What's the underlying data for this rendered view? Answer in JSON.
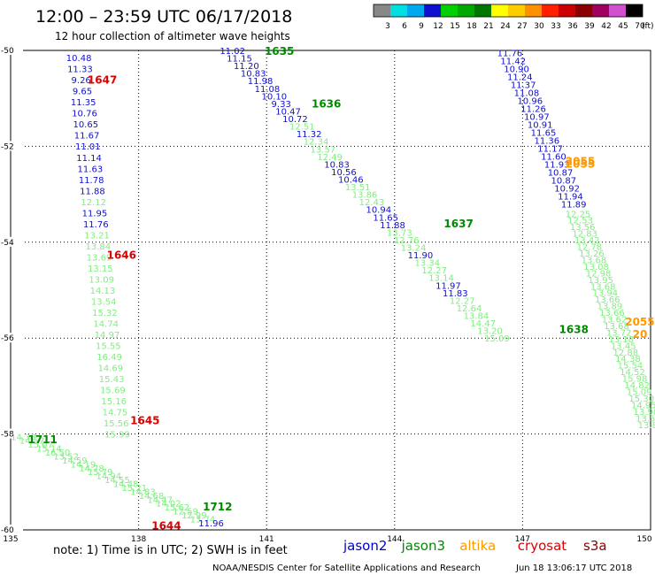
{
  "title": "12:00 – 23:59 UTC 06/17/2018",
  "subtitle": "12 hour collection of altimeter wave heights",
  "legend": {
    "unit": "(ft)",
    "bins": [
      {
        "label": "3",
        "color": "#888888"
      },
      {
        "label": "6",
        "color": "#00e0e0"
      },
      {
        "label": "9",
        "color": "#00a8f0"
      },
      {
        "label": "12",
        "color": "#1010d0"
      },
      {
        "label": "15",
        "color": "#00d000"
      },
      {
        "label": "18",
        "color": "#00a800"
      },
      {
        "label": "21",
        "color": "#007800"
      },
      {
        "label": "24",
        "color": "#ffff00"
      },
      {
        "label": "27",
        "color": "#ffcc00"
      },
      {
        "label": "30",
        "color": "#ff9000"
      },
      {
        "label": "33",
        "color": "#ff2000"
      },
      {
        "label": "36",
        "color": "#cc0000"
      },
      {
        "label": "39",
        "color": "#8a0000"
      },
      {
        "label": "42",
        "color": "#a00060"
      },
      {
        "label": "45",
        "color": "#d050d0"
      },
      {
        "label": "70",
        "color": "#000000"
      }
    ]
  },
  "footer": {
    "note": "note: 1) Time is in UTC; 2) SWH is in feet",
    "satellites": [
      {
        "name": "jason2",
        "color": "#0000cc"
      },
      {
        "name": "jason3",
        "color": "#008800"
      },
      {
        "name": "altika",
        "color": "#ff9900"
      },
      {
        "name": "cryosat",
        "color": "#dd0000"
      },
      {
        "name": "s3a",
        "color": "#880000"
      }
    ],
    "credit": "NOAA/NESDIS Center for Satellite Applications and Research",
    "stamp": "Jun 18 13:06:17 UTC 2018"
  },
  "chart_data": {
    "type": "scatter",
    "xlim": [
      135,
      150
    ],
    "ylim": [
      -60,
      -50
    ],
    "xticks": [
      135,
      138,
      141,
      144,
      147,
      150
    ],
    "yticks": [
      -50,
      -52,
      -54,
      -56,
      -58,
      -60
    ],
    "xtick_labels": [
      "135",
      "138",
      "141",
      "144",
      "147",
      "150"
    ],
    "ytick_labels": [
      "-50",
      "-52",
      "-54",
      "-56",
      "-58",
      "-60"
    ],
    "grid": true,
    "value_colors": {
      "c12": "#1010d0",
      "c15": "#80ee80"
    },
    "tracks": [
      {
        "satellite": "jason2",
        "values": [
          "10.48",
          "11.33",
          "9.26",
          "9.65",
          "11.35",
          "10.76",
          "10.65",
          "11.67",
          "11.01",
          "11.14",
          "11.63",
          "11.78",
          "11.88",
          "12.12",
          "11.95",
          "11.76",
          "13.21",
          "13.84",
          "13.69",
          "13.15",
          "13.09",
          "14.13",
          "13.54",
          "15.32",
          "14.74",
          "14.97",
          "15.55",
          "16.49",
          "14.69",
          "15.43",
          "15.69",
          "15.16",
          "14.75",
          "15.56",
          "15.99"
        ],
        "lon_start": 136.6,
        "lat_start": -50.15,
        "lon_end": 137.5,
        "lat_end": -58.0
      },
      {
        "satellite": "jason3",
        "values": [
          "14.33",
          "14.57",
          "15.07",
          "15.14",
          "16.50",
          "13.52",
          "14.59",
          "14.19",
          "14.78",
          "15.79",
          "14.94",
          "14.55",
          "14.48",
          "15.21",
          "14.83",
          "14.68",
          "14.47",
          "14.02",
          "15.62",
          "12.59",
          "12.99",
          "13.74",
          "11.96"
        ],
        "lon_start": 135.3,
        "lat_start": -58.05,
        "lon_end": 139.7,
        "lat_end": -59.85
      },
      {
        "satellite": "jason2",
        "values": [
          "11.02",
          "11.15",
          "11.20",
          "10.83",
          "11.98",
          "11.08",
          "10.10",
          "9.33",
          "10.47",
          "10.72",
          "12.51",
          "11.32",
          "12.34",
          "13.57",
          "12.49",
          "10.83",
          "10.56",
          "10.46",
          "13.51",
          "13.86",
          "12.43",
          "10.94",
          "11.65",
          "11.88",
          "13.73",
          "12.76",
          "13.24",
          "11.90",
          "13.34",
          "12.27",
          "13.14",
          "11.97",
          "11.83",
          "12.27",
          "12.64",
          "13.84",
          "14.47",
          "13.20",
          "15.09"
        ],
        "lon_start": 140.2,
        "lat_start": -50.0,
        "lon_end": 146.4,
        "lat_end": -56.0
      },
      {
        "satellite": "jason2",
        "values": [
          "11.76",
          "11.42",
          "10.90",
          "11.24",
          "11.37",
          "11.08",
          "10.96",
          "11.26",
          "10.97",
          "10.91",
          "11.65",
          "11.36",
          "11.17",
          "11.60",
          "11.93",
          "10.87",
          "10.87",
          "10.92",
          "11.94",
          "11.89"
        ],
        "lon_start": 146.7,
        "lat_start": -50.05,
        "lon_end": 148.2,
        "lat_end": -53.2
      },
      {
        "satellite": "jason3",
        "values": [
          "12.25",
          "12.53",
          "13.56",
          "12.83",
          "13.42",
          "12.78",
          "13.26",
          "13.68",
          "13.08",
          "12.98",
          "13.95",
          "13.68",
          "13.94",
          "13.66",
          "13.89",
          "13.66",
          "13.62",
          "13.68",
          "13.72",
          "13.18",
          "13.45",
          "12.88",
          "14.38",
          "15.54",
          "14.52",
          "15.98",
          "14.82",
          "15.09",
          "15.30",
          "14.95",
          "13.98",
          "13.54",
          "13.88"
        ],
        "lon_start": 148.3,
        "lat_start": -53.4,
        "lon_end": 150.0,
        "lat_end": -57.8
      }
    ],
    "time_labels": [
      {
        "text": "1635",
        "lon": 141.3,
        "lat": -50.0,
        "satellite": "jason3"
      },
      {
        "text": "1647",
        "lon": 137.15,
        "lat": -50.6,
        "satellite": "cryosat"
      },
      {
        "text": "1636",
        "lon": 142.4,
        "lat": -51.1,
        "satellite": "jason3"
      },
      {
        "text": "2055",
        "lon": 148.35,
        "lat": -52.3,
        "satellite": "altika"
      },
      {
        "text": "2055",
        "lon": 148.35,
        "lat": -52.35,
        "satellite": "altika"
      },
      {
        "text": "1637",
        "lon": 145.5,
        "lat": -53.6,
        "satellite": "jason3"
      },
      {
        "text": "1646",
        "lon": 137.6,
        "lat": -54.25,
        "satellite": "cryosat"
      },
      {
        "text": "1638",
        "lon": 148.2,
        "lat": -55.8,
        "satellite": "jason3"
      },
      {
        "text": "2055",
        "lon": 149.75,
        "lat": -55.65,
        "satellite": "altika"
      },
      {
        "text": "20",
        "lon": 149.75,
        "lat": -55.9,
        "satellite": "altika"
      },
      {
        "text": "1645",
        "lon": 138.15,
        "lat": -57.7,
        "satellite": "cryosat"
      },
      {
        "text": "1711",
        "lon": 135.75,
        "lat": -58.1,
        "satellite": "jason3"
      },
      {
        "text": "1712",
        "lon": 139.85,
        "lat": -59.5,
        "satellite": "jason3"
      },
      {
        "text": "1644",
        "lon": 138.65,
        "lat": -59.9,
        "satellite": "cryosat"
      }
    ]
  }
}
